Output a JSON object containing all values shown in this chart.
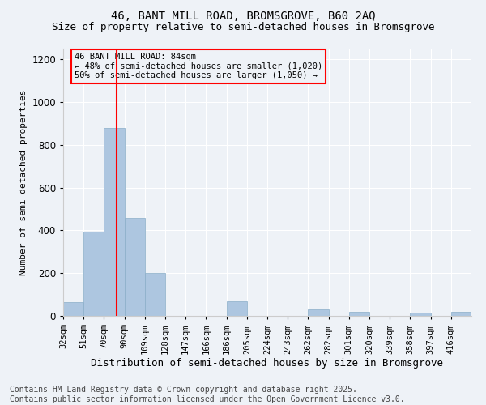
{
  "title": "46, BANT MILL ROAD, BROMSGROVE, B60 2AQ",
  "subtitle": "Size of property relative to semi-detached houses in Bromsgrove",
  "xlabel": "Distribution of semi-detached houses by size in Bromsgrove",
  "ylabel": "Number of semi-detached properties",
  "bin_labels": [
    "32sqm",
    "51sqm",
    "70sqm",
    "90sqm",
    "109sqm",
    "128sqm",
    "147sqm",
    "166sqm",
    "186sqm",
    "205sqm",
    "224sqm",
    "243sqm",
    "262sqm",
    "282sqm",
    "301sqm",
    "320sqm",
    "339sqm",
    "358sqm",
    "397sqm",
    "416sqm"
  ],
  "n_bins": 20,
  "bar_values": [
    65,
    395,
    880,
    460,
    200,
    0,
    0,
    0,
    70,
    0,
    0,
    0,
    30,
    0,
    20,
    0,
    0,
    15,
    0,
    20
  ],
  "bar_color": "#adc6e0",
  "bar_edge_color": "#8aaec8",
  "property_line_bin": 2.63,
  "vline_color": "red",
  "annotation_text": "46 BANT MILL ROAD: 84sqm\n← 48% of semi-detached houses are smaller (1,020)\n50% of semi-detached houses are larger (1,050) →",
  "annotation_box_color": "red",
  "ylim": [
    0,
    1250
  ],
  "yticks": [
    0,
    200,
    400,
    600,
    800,
    1000,
    1200
  ],
  "background_color": "#eef2f7",
  "footer": "Contains HM Land Registry data © Crown copyright and database right 2025.\nContains public sector information licensed under the Open Government Licence v3.0.",
  "footer_fontsize": 7,
  "title_fontsize": 10,
  "subtitle_fontsize": 9,
  "ylabel_fontsize": 8,
  "xlabel_fontsize": 9
}
